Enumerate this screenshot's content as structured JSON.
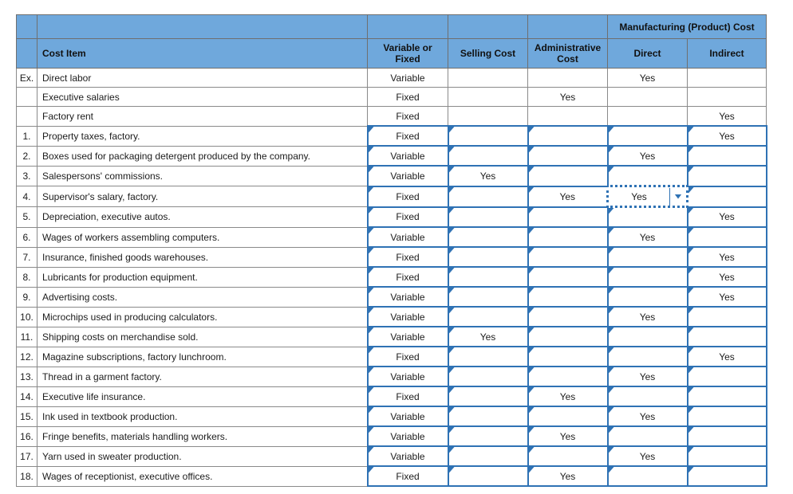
{
  "colors": {
    "header_bg": "#6fa8dc",
    "interactive_border": "#2f72b4",
    "grid_line": "#8a8a8a",
    "text": "#1c1c1c"
  },
  "table": {
    "header": {
      "group": "Manufacturing (Product) Cost",
      "cost_item": "Cost Item",
      "variable_or_fixed": "Variable or Fixed",
      "selling": "Selling Cost",
      "admin": "Administrative Cost",
      "direct": "Direct",
      "indirect": "Indirect"
    },
    "field_order": [
      "variable_or_fixed",
      "selling",
      "admin",
      "direct",
      "indirect"
    ],
    "rows": [
      {
        "num": "Ex.",
        "item": "Direct labor",
        "variable_or_fixed": "Variable",
        "selling": "",
        "admin": "",
        "direct": "Yes",
        "indirect": "",
        "interactive": false
      },
      {
        "num": "",
        "item": "Executive salaries",
        "variable_or_fixed": "Fixed",
        "selling": "",
        "admin": "Yes",
        "direct": "",
        "indirect": "",
        "interactive": false
      },
      {
        "num": "",
        "item": "Factory rent",
        "variable_or_fixed": "Fixed",
        "selling": "",
        "admin": "",
        "direct": "",
        "indirect": "Yes",
        "interactive": false
      },
      {
        "num": "1.",
        "item": "Property taxes, factory.",
        "variable_or_fixed": "Fixed",
        "selling": "",
        "admin": "",
        "direct": "",
        "indirect": "Yes",
        "interactive": true
      },
      {
        "num": "2.",
        "item": "Boxes used for packaging detergent produced by the company.",
        "variable_or_fixed": "Variable",
        "selling": "",
        "admin": "",
        "direct": "Yes",
        "indirect": "",
        "interactive": true
      },
      {
        "num": "3.",
        "item": "Salespersons' commissions.",
        "variable_or_fixed": "Variable",
        "selling": "Yes",
        "admin": "",
        "direct": "",
        "indirect": "",
        "interactive": true
      },
      {
        "num": "4.",
        "item": "Supervisor's salary, factory.",
        "variable_or_fixed": "Fixed",
        "selling": "",
        "admin": "Yes",
        "direct": "Yes",
        "indirect": "",
        "interactive": true,
        "selected": "direct"
      },
      {
        "num": "5.",
        "item": "Depreciation, executive autos.",
        "variable_or_fixed": "Fixed",
        "selling": "",
        "admin": "",
        "direct": "",
        "indirect": "Yes",
        "interactive": true
      },
      {
        "num": "6.",
        "item": "Wages of workers assembling computers.",
        "variable_or_fixed": "Variable",
        "selling": "",
        "admin": "",
        "direct": "Yes",
        "indirect": "",
        "interactive": true
      },
      {
        "num": "7.",
        "item": "Insurance, finished goods warehouses.",
        "variable_or_fixed": "Fixed",
        "selling": "",
        "admin": "",
        "direct": "",
        "indirect": "Yes",
        "interactive": true
      },
      {
        "num": "8.",
        "item": "Lubricants for production equipment.",
        "variable_or_fixed": "Fixed",
        "selling": "",
        "admin": "",
        "direct": "",
        "indirect": "Yes",
        "interactive": true
      },
      {
        "num": "9.",
        "item": "Advertising costs.",
        "variable_or_fixed": "Variable",
        "selling": "",
        "admin": "",
        "direct": "",
        "indirect": "Yes",
        "interactive": true
      },
      {
        "num": "10.",
        "item": "Microchips used in producing calculators.",
        "variable_or_fixed": "Variable",
        "selling": "",
        "admin": "",
        "direct": "Yes",
        "indirect": "",
        "interactive": true
      },
      {
        "num": "11.",
        "item": "Shipping costs on merchandise sold.",
        "variable_or_fixed": "Variable",
        "selling": "Yes",
        "admin": "",
        "direct": "",
        "indirect": "",
        "interactive": true
      },
      {
        "num": "12.",
        "item": "Magazine subscriptions, factory lunchroom.",
        "variable_or_fixed": "Fixed",
        "selling": "",
        "admin": "",
        "direct": "",
        "indirect": "Yes",
        "interactive": true
      },
      {
        "num": "13.",
        "item": "Thread in a garment factory.",
        "variable_or_fixed": "Variable",
        "selling": "",
        "admin": "",
        "direct": "Yes",
        "indirect": "",
        "interactive": true
      },
      {
        "num": "14.",
        "item": "Executive life insurance.",
        "variable_or_fixed": "Fixed",
        "selling": "",
        "admin": "Yes",
        "direct": "",
        "indirect": "",
        "interactive": true
      },
      {
        "num": "15.",
        "item": "Ink used in textbook production.",
        "variable_or_fixed": "Variable",
        "selling": "",
        "admin": "",
        "direct": "Yes",
        "indirect": "",
        "interactive": true
      },
      {
        "num": "16.",
        "item": "Fringe benefits, materials handling workers.",
        "variable_or_fixed": "Variable",
        "selling": "",
        "admin": "Yes",
        "direct": "",
        "indirect": "",
        "interactive": true
      },
      {
        "num": "17.",
        "item": "Yarn used in sweater production.",
        "variable_or_fixed": "Variable",
        "selling": "",
        "admin": "",
        "direct": "Yes",
        "indirect": "",
        "interactive": true
      },
      {
        "num": "18.",
        "item": "Wages of receptionist, executive offices.",
        "variable_or_fixed": "Fixed",
        "selling": "",
        "admin": "Yes",
        "direct": "",
        "indirect": "",
        "interactive": true
      }
    ]
  }
}
